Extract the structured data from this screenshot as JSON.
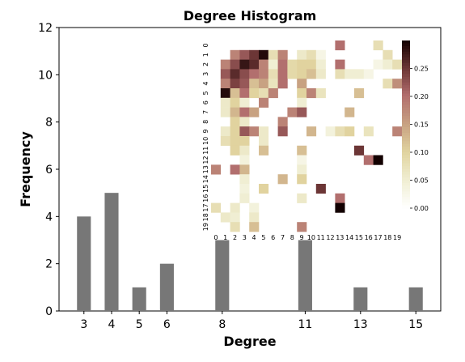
{
  "chart_data": [
    {
      "type": "bar",
      "title": "Degree Histogram",
      "xlabel": "Degree",
      "ylabel": "Frequency",
      "categories": [
        3,
        4,
        5,
        6,
        8,
        11,
        13,
        15
      ],
      "values": [
        4,
        5,
        1,
        2,
        3,
        3,
        1,
        1
      ],
      "ylim": [
        0,
        12
      ],
      "xlim": [
        2.1,
        15.9
      ],
      "yticks": [
        0,
        2,
        4,
        6,
        8,
        10,
        12
      ],
      "bar_color": "#777777",
      "grid": false
    },
    {
      "type": "heatmap",
      "title": "",
      "rows": 20,
      "cols": 20,
      "row_labels": [
        "0",
        "1",
        "2",
        "3",
        "4",
        "5",
        "6",
        "7",
        "8",
        "9",
        "10",
        "11",
        "12",
        "13",
        "14",
        "15",
        "16",
        "17",
        "18",
        "19"
      ],
      "col_labels": [
        "0",
        "1",
        "2",
        "3",
        "4",
        "5",
        "6",
        "7",
        "8",
        "9",
        "10",
        "11",
        "12",
        "13",
        "14",
        "15",
        "16",
        "17",
        "18",
        "19"
      ],
      "colorbar_ticks": [
        "0.00",
        "0.05",
        "0.10",
        "0.15",
        "0.20",
        "0.25"
      ],
      "vmin": 0,
      "vmax": 0.3,
      "colormap": "pink_r",
      "cells": [
        [
          0,
          13,
          0.2
        ],
        [
          0,
          17,
          0.08
        ],
        [
          1,
          2,
          0.18
        ],
        [
          1,
          3,
          0.22
        ],
        [
          1,
          4,
          0.25
        ],
        [
          1,
          5,
          0.29
        ],
        [
          1,
          6,
          0.08
        ],
        [
          1,
          7,
          0.18
        ],
        [
          1,
          9,
          0.06
        ],
        [
          1,
          10,
          0.08
        ],
        [
          1,
          11,
          0.03
        ],
        [
          1,
          18,
          0.08
        ],
        [
          2,
          1,
          0.18
        ],
        [
          2,
          2,
          0.23
        ],
        [
          2,
          3,
          0.28
        ],
        [
          2,
          4,
          0.26
        ],
        [
          2,
          5,
          0.18
        ],
        [
          2,
          6,
          0.05
        ],
        [
          2,
          7,
          0.2
        ],
        [
          2,
          8,
          0.09
        ],
        [
          2,
          9,
          0.1
        ],
        [
          2,
          10,
          0.1
        ],
        [
          2,
          11,
          0.05
        ],
        [
          2,
          13,
          0.2
        ],
        [
          2,
          17,
          0.03
        ],
        [
          2,
          18,
          0.05
        ],
        [
          2,
          19,
          0.08
        ],
        [
          3,
          1,
          0.22
        ],
        [
          3,
          2,
          0.26
        ],
        [
          3,
          3,
          0.23
        ],
        [
          3,
          4,
          0.2
        ],
        [
          3,
          5,
          0.18
        ],
        [
          3,
          6,
          0.08
        ],
        [
          3,
          7,
          0.2
        ],
        [
          3,
          8,
          0.09
        ],
        [
          3,
          9,
          0.1
        ],
        [
          3,
          10,
          0.12
        ],
        [
          3,
          11,
          0.06
        ],
        [
          3,
          13,
          0.08
        ],
        [
          3,
          14,
          0.05
        ],
        [
          3,
          15,
          0.05
        ],
        [
          3,
          16,
          0.03
        ],
        [
          4,
          1,
          0.18
        ],
        [
          4,
          2,
          0.24
        ],
        [
          4,
          3,
          0.22
        ],
        [
          4,
          4,
          0.12
        ],
        [
          4,
          5,
          0.15
        ],
        [
          4,
          6,
          0.07
        ],
        [
          4,
          7,
          0.2
        ],
        [
          4,
          9,
          0.15
        ],
        [
          4,
          18,
          0.08
        ],
        [
          4,
          19,
          0.17
        ],
        [
          5,
          1,
          0.29
        ],
        [
          5,
          2,
          0.12
        ],
        [
          5,
          3,
          0.2
        ],
        [
          5,
          4,
          0.1
        ],
        [
          5,
          5,
          0.08
        ],
        [
          5,
          6,
          0.18
        ],
        [
          5,
          9,
          0.1
        ],
        [
          5,
          10,
          0.18
        ],
        [
          5,
          11,
          0.07
        ],
        [
          5,
          15,
          0.12
        ],
        [
          6,
          1,
          0.06
        ],
        [
          6,
          2,
          0.1
        ],
        [
          6,
          3,
          0.05
        ],
        [
          6,
          5,
          0.18
        ],
        [
          6,
          9,
          0.05
        ],
        [
          7,
          1,
          0.06
        ],
        [
          7,
          2,
          0.13
        ],
        [
          7,
          3,
          0.2
        ],
        [
          7,
          4,
          0.15
        ],
        [
          7,
          8,
          0.18
        ],
        [
          7,
          9,
          0.22
        ],
        [
          7,
          14,
          0.13
        ],
        [
          8,
          2,
          0.1
        ],
        [
          8,
          3,
          0.06
        ],
        [
          8,
          7,
          0.18
        ],
        [
          9,
          1,
          0.06
        ],
        [
          9,
          2,
          0.1
        ],
        [
          9,
          3,
          0.22
        ],
        [
          9,
          4,
          0.18
        ],
        [
          9,
          5,
          0.06
        ],
        [
          9,
          7,
          0.22
        ],
        [
          9,
          10,
          0.13
        ],
        [
          9,
          12,
          0.04
        ],
        [
          9,
          13,
          0.08
        ],
        [
          9,
          14,
          0.1
        ],
        [
          9,
          16,
          0.07
        ],
        [
          9,
          19,
          0.18
        ],
        [
          10,
          1,
          0.08
        ],
        [
          10,
          2,
          0.1
        ],
        [
          10,
          3,
          0.1
        ],
        [
          10,
          5,
          0.06
        ],
        [
          11,
          2,
          0.1
        ],
        [
          11,
          3,
          0.06
        ],
        [
          11,
          5,
          0.12
        ],
        [
          11,
          9,
          0.12
        ],
        [
          11,
          15,
          0.25
        ],
        [
          12,
          3,
          0.04
        ],
        [
          12,
          9,
          0.03
        ],
        [
          12,
          16,
          0.2
        ],
        [
          12,
          17,
          0.3
        ],
        [
          13,
          0,
          0.18
        ],
        [
          13,
          2,
          0.2
        ],
        [
          13,
          3,
          0.13
        ],
        [
          13,
          9,
          0.05
        ],
        [
          14,
          3,
          0.05
        ],
        [
          14,
          7,
          0.13
        ],
        [
          14,
          9,
          0.1
        ],
        [
          15,
          3,
          0.04
        ],
        [
          15,
          5,
          0.1
        ],
        [
          15,
          11,
          0.25
        ],
        [
          16,
          3,
          0.05
        ],
        [
          16,
          9,
          0.06
        ],
        [
          16,
          13,
          0.2
        ],
        [
          17,
          0,
          0.08
        ],
        [
          17,
          2,
          0.06
        ],
        [
          17,
          4,
          0.04
        ],
        [
          17,
          13,
          0.3
        ],
        [
          18,
          1,
          0.06
        ],
        [
          18,
          2,
          0.05
        ],
        [
          18,
          4,
          0.06
        ],
        [
          19,
          2,
          0.08
        ],
        [
          19,
          4,
          0.12
        ],
        [
          19,
          9,
          0.18
        ]
      ]
    }
  ]
}
